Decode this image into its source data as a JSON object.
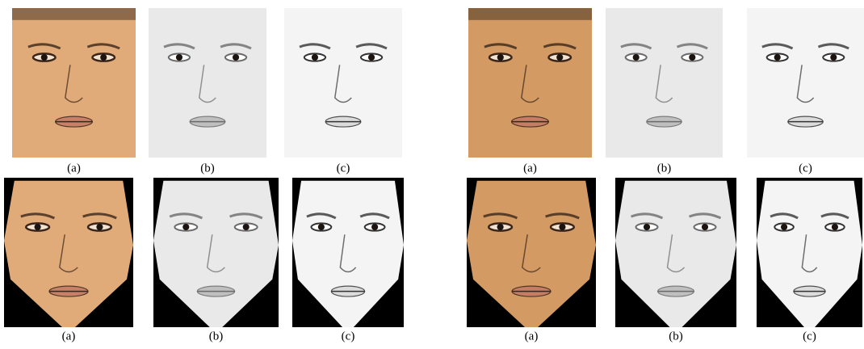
{
  "figure": {
    "rows": [
      [
        "(a)",
        "(b)",
        "(c)",
        "(a)",
        "(b)",
        "(c)"
      ],
      [
        "(a)",
        "(b)",
        "(c)",
        "(a)",
        "(b)",
        "(c)"
      ]
    ]
  }
}
